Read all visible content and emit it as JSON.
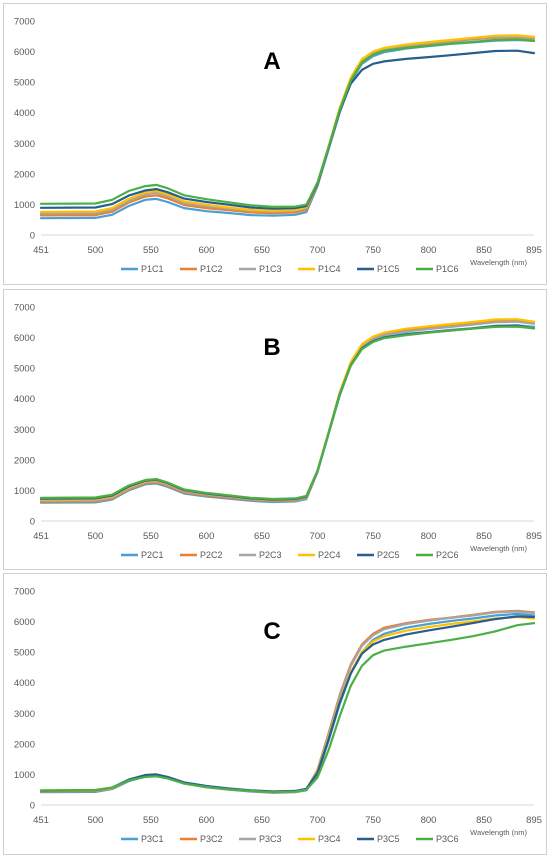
{
  "chart_data": [
    {
      "type": "line",
      "panel_label": "A",
      "xlabel": "Wavelength (nm)",
      "ylabel": "",
      "xlim": [
        451,
        895
      ],
      "ylim": [
        0,
        7000
      ],
      "x_ticks": [
        451,
        500,
        550,
        600,
        650,
        700,
        750,
        800,
        850,
        895
      ],
      "y_ticks": [
        0,
        1000,
        2000,
        3000,
        4000,
        5000,
        6000,
        7000
      ],
      "legend_position": "bottom",
      "x": [
        451,
        500,
        515,
        530,
        545,
        555,
        565,
        580,
        600,
        620,
        640,
        660,
        680,
        690,
        700,
        710,
        720,
        730,
        740,
        750,
        760,
        780,
        800,
        820,
        840,
        860,
        880,
        895
      ],
      "series": [
        {
          "name": "P1C1",
          "color": "#4a9fd5",
          "values": [
            550,
            560,
            660,
            950,
            1150,
            1180,
            1080,
            880,
            780,
            720,
            650,
            630,
            660,
            750,
            1600,
            2800,
            4000,
            5000,
            5600,
            5850,
            5980,
            6100,
            6180,
            6250,
            6300,
            6360,
            6380,
            6350
          ]
        },
        {
          "name": "P1C2",
          "color": "#ed7d31",
          "values": [
            640,
            650,
            760,
            1060,
            1260,
            1300,
            1200,
            980,
            880,
            810,
            740,
            710,
            740,
            830,
            1650,
            2850,
            4050,
            5050,
            5650,
            5900,
            6030,
            6180,
            6260,
            6330,
            6400,
            6450,
            6470,
            6420
          ]
        },
        {
          "name": "P1C3",
          "color": "#a5a5a5",
          "values": [
            700,
            710,
            820,
            1120,
            1330,
            1380,
            1270,
            1040,
            940,
            860,
            790,
            760,
            790,
            880,
            1680,
            2880,
            4100,
            5100,
            5700,
            5950,
            6080,
            6200,
            6280,
            6350,
            6420,
            6470,
            6490,
            6440
          ]
        },
        {
          "name": "P1C4",
          "color": "#ffc000",
          "values": [
            760,
            770,
            880,
            1180,
            1390,
            1440,
            1330,
            1100,
            990,
            900,
            820,
            790,
            820,
            910,
            1700,
            2900,
            4150,
            5150,
            5750,
            6000,
            6120,
            6230,
            6310,
            6380,
            6450,
            6520,
            6530,
            6480
          ]
        },
        {
          "name": "P1C5",
          "color": "#255e91",
          "values": [
            890,
            900,
            1010,
            1290,
            1460,
            1500,
            1400,
            1190,
            1080,
            990,
            900,
            860,
            880,
            950,
            1680,
            2850,
            4050,
            4950,
            5400,
            5600,
            5680,
            5760,
            5820,
            5880,
            5950,
            6020,
            6030,
            5950
          ]
        },
        {
          "name": "P1C6",
          "color": "#4caf45",
          "values": [
            1020,
            1030,
            1150,
            1440,
            1600,
            1640,
            1530,
            1300,
            1170,
            1070,
            970,
            920,
            930,
            990,
            1720,
            2880,
            4100,
            5050,
            5650,
            5900,
            6030,
            6120,
            6190,
            6260,
            6320,
            6380,
            6400,
            6350
          ]
        }
      ]
    },
    {
      "type": "line",
      "panel_label": "B",
      "xlabel": "Wavelength (nm)",
      "ylabel": "",
      "xlim": [
        451,
        895
      ],
      "ylim": [
        0,
        7000
      ],
      "x_ticks": [
        451,
        500,
        550,
        600,
        650,
        700,
        750,
        800,
        850,
        895
      ],
      "y_ticks": [
        0,
        1000,
        2000,
        3000,
        4000,
        5000,
        6000,
        7000
      ],
      "legend_position": "bottom",
      "x": [
        451,
        500,
        515,
        530,
        545,
        555,
        565,
        580,
        600,
        620,
        640,
        660,
        680,
        690,
        700,
        710,
        720,
        730,
        740,
        750,
        760,
        780,
        800,
        820,
        840,
        860,
        880,
        895
      ],
      "series": [
        {
          "name": "P2C1",
          "color": "#4a9fd5",
          "values": [
            600,
            610,
            700,
            1000,
            1200,
            1230,
            1120,
            900,
            800,
            730,
            660,
            620,
            640,
            720,
            1600,
            2850,
            4100,
            5100,
            5650,
            5900,
            6020,
            6120,
            6180,
            6250,
            6300,
            6380,
            6400,
            6350
          ]
        },
        {
          "name": "P2C2",
          "color": "#ed7d31",
          "values": [
            630,
            640,
            730,
            1030,
            1230,
            1260,
            1150,
            930,
            830,
            760,
            690,
            650,
            670,
            750,
            1620,
            2880,
            4150,
            5150,
            5720,
            5980,
            6120,
            6250,
            6330,
            6400,
            6470,
            6560,
            6580,
            6500
          ]
        },
        {
          "name": "P2C3",
          "color": "#a5a5a5",
          "values": [
            660,
            670,
            760,
            1060,
            1260,
            1290,
            1180,
            960,
            860,
            790,
            710,
            670,
            690,
            770,
            1630,
            2880,
            4150,
            5150,
            5700,
            5950,
            6080,
            6200,
            6280,
            6350,
            6420,
            6500,
            6520,
            6450
          ]
        },
        {
          "name": "P2C4",
          "color": "#ffc000",
          "values": [
            700,
            710,
            800,
            1100,
            1300,
            1330,
            1220,
            1000,
            890,
            810,
            730,
            690,
            710,
            790,
            1650,
            2900,
            4200,
            5200,
            5780,
            6030,
            6160,
            6290,
            6370,
            6440,
            6510,
            6590,
            6600,
            6520
          ]
        },
        {
          "name": "P2C5",
          "color": "#255e91",
          "values": [
            730,
            740,
            830,
            1130,
            1320,
            1350,
            1240,
            1010,
            900,
            820,
            740,
            700,
            720,
            800,
            1640,
            2880,
            4150,
            5100,
            5650,
            5880,
            6000,
            6100,
            6170,
            6230,
            6300,
            6380,
            6390,
            6300
          ]
        },
        {
          "name": "P2C6",
          "color": "#4caf45",
          "values": [
            760,
            770,
            860,
            1160,
            1340,
            1370,
            1260,
            1030,
            920,
            840,
            760,
            720,
            740,
            820,
            1650,
            2880,
            4130,
            5080,
            5620,
            5860,
            5980,
            6080,
            6160,
            6230,
            6290,
            6350,
            6360,
            6300
          ]
        }
      ]
    },
    {
      "type": "line",
      "panel_label": "C",
      "xlabel": "Wavelength (nm)",
      "ylabel": "",
      "xlim": [
        451,
        895
      ],
      "ylim": [
        0,
        7000
      ],
      "x_ticks": [
        451,
        500,
        550,
        600,
        650,
        700,
        750,
        800,
        850,
        895
      ],
      "y_ticks": [
        0,
        1000,
        2000,
        3000,
        4000,
        5000,
        6000,
        7000
      ],
      "legend_position": "bottom",
      "x": [
        451,
        500,
        515,
        530,
        545,
        555,
        565,
        580,
        600,
        620,
        640,
        660,
        680,
        690,
        700,
        710,
        720,
        730,
        740,
        750,
        760,
        780,
        800,
        820,
        840,
        860,
        880,
        895
      ],
      "series": [
        {
          "name": "P3C1",
          "color": "#4a9fd5",
          "values": [
            420,
            430,
            520,
            780,
            940,
            960,
            880,
            700,
            580,
            500,
            440,
            400,
            420,
            480,
            1000,
            2100,
            3300,
            4300,
            5000,
            5400,
            5600,
            5800,
            5920,
            6020,
            6100,
            6200,
            6250,
            6200
          ]
        },
        {
          "name": "P3C2",
          "color": "#ed7d31",
          "values": [
            440,
            450,
            540,
            800,
            950,
            970,
            890,
            710,
            590,
            510,
            450,
            410,
            430,
            500,
            1150,
            2350,
            3600,
            4600,
            5250,
            5600,
            5800,
            5950,
            6050,
            6130,
            6220,
            6320,
            6350,
            6300
          ]
        },
        {
          "name": "P3C3",
          "color": "#a5a5a5",
          "values": [
            450,
            460,
            550,
            810,
            960,
            980,
            900,
            720,
            600,
            520,
            460,
            420,
            440,
            510,
            1120,
            2300,
            3550,
            4550,
            5200,
            5550,
            5750,
            5920,
            6030,
            6120,
            6200,
            6300,
            6330,
            6280
          ]
        },
        {
          "name": "P3C4",
          "color": "#ffc000",
          "values": [
            460,
            470,
            560,
            820,
            970,
            990,
            910,
            730,
            610,
            530,
            470,
            430,
            450,
            520,
            1080,
            2200,
            3400,
            4350,
            5000,
            5350,
            5520,
            5700,
            5820,
            5920,
            6010,
            6100,
            6150,
            6100
          ]
        },
        {
          "name": "P3C5",
          "color": "#255e91",
          "values": [
            470,
            480,
            570,
            830,
            980,
            1000,
            920,
            740,
            620,
            540,
            480,
            440,
            460,
            530,
            1050,
            2150,
            3350,
            4300,
            4950,
            5250,
            5400,
            5580,
            5710,
            5830,
            5950,
            6080,
            6170,
            6150
          ]
        },
        {
          "name": "P3C6",
          "color": "#4caf45",
          "values": [
            480,
            490,
            570,
            800,
            920,
            940,
            870,
            700,
            590,
            510,
            460,
            420,
            440,
            500,
            900,
            1800,
            2900,
            3900,
            4550,
            4900,
            5050,
            5180,
            5290,
            5400,
            5520,
            5680,
            5880,
            5950
          ]
        }
      ]
    }
  ]
}
